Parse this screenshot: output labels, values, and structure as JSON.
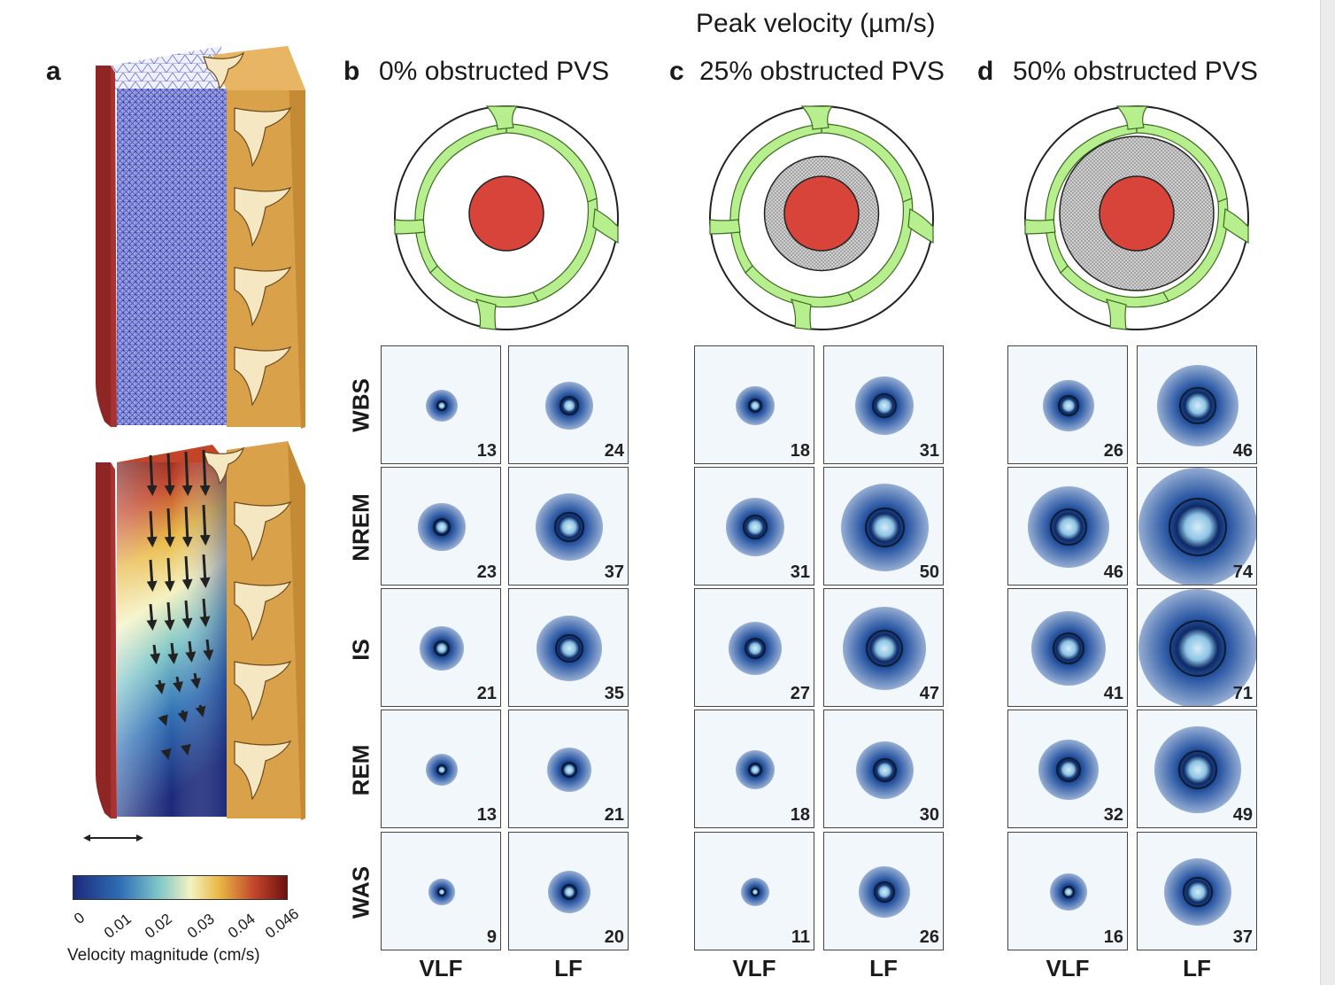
{
  "figure_title": "Peak velocity (µm/s)",
  "panel_a": {
    "letter": "a",
    "colorbar": {
      "label": "Velocity magnitude (cm/s)",
      "ticks": [
        "0",
        "0.01",
        "0.02",
        "0.03",
        "0.04",
        "0.046"
      ],
      "colors": [
        "#1c2a7a",
        "#2f6fb5",
        "#7fc6c8",
        "#f4f2c0",
        "#e9b945",
        "#c2452a",
        "#6e1010"
      ]
    }
  },
  "panels": [
    {
      "letter": "b",
      "title": "0% obstructed PVS",
      "obstruction": 0
    },
    {
      "letter": "c",
      "title": "25% obstructed PVS",
      "obstruction": 0.25
    },
    {
      "letter": "d",
      "title": "50% obstructed PVS",
      "obstruction": 0.5
    }
  ],
  "row_labels": [
    "WBS",
    "NREM",
    "IS",
    "REM",
    "WAS"
  ],
  "col_labels": [
    "VLF",
    "LF"
  ],
  "peak_velocity": {
    "b": {
      "VLF": [
        13,
        23,
        21,
        13,
        9
      ],
      "LF": [
        24,
        37,
        35,
        21,
        20
      ]
    },
    "c": {
      "VLF": [
        18,
        31,
        27,
        18,
        11
      ],
      "LF": [
        31,
        50,
        47,
        30,
        26
      ]
    },
    "d": {
      "VLF": [
        26,
        46,
        41,
        32,
        16
      ],
      "LF": [
        46,
        74,
        71,
        49,
        37
      ]
    }
  },
  "colors": {
    "artery": "#d9443a",
    "astrocyte": "#b8ef8e",
    "obstruction": "#d6d6d6",
    "tissue": "#d9a24a",
    "vessel_wall": "#8e2626",
    "mesh": "#3a3fb0",
    "ring_dark": "#0e2a66"
  }
}
